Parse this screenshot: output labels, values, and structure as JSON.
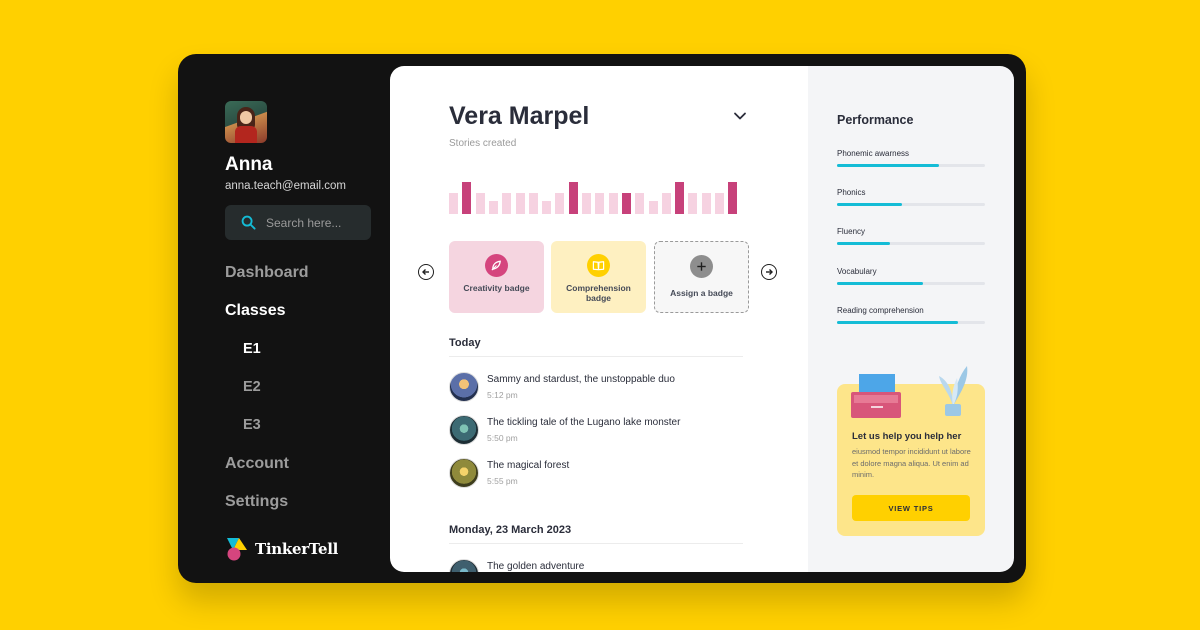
{
  "sidebar": {
    "user": {
      "name": "Anna",
      "email": "anna.teach@email.com"
    },
    "search": {
      "placeholder": "Search here..."
    },
    "nav": {
      "dashboard": "Dashboard",
      "classes": "Classes",
      "e1": "E1",
      "e2": "E2",
      "e3": "E3",
      "account": "Account",
      "settings": "Settings"
    },
    "logo": "TinkerTell"
  },
  "main": {
    "student_name": "Vera Marpel",
    "stories_label": "Stories created",
    "stories_chart": {
      "type": "bar",
      "values": [
        2,
        4,
        2,
        1,
        2,
        2,
        2,
        1,
        2,
        4,
        2,
        2,
        2,
        2,
        2,
        1,
        2,
        4,
        2,
        2,
        2,
        4
      ],
      "highlighted": [
        1,
        9,
        13,
        17,
        21
      ],
      "colors": {
        "normal": "#F6D2E1",
        "highlight": "#C7417A"
      }
    },
    "badges": [
      {
        "label": "Creativity badge",
        "icon": "feather-icon",
        "bg": "#F5D5E0",
        "icon_bg": "#D5457E"
      },
      {
        "label": "Comprehension badge",
        "icon": "book-icon",
        "bg": "#FEF0C1",
        "icon_bg": "#FFD000"
      },
      {
        "label": "Assign a badge",
        "icon": "plus-icon",
        "bg": "#F7F7F7",
        "icon_bg": "#8E8E8E"
      }
    ],
    "sections": [
      {
        "title": "Today",
        "stories": [
          {
            "title": "Sammy and stardust, the unstoppable duo",
            "time": "5:12 pm"
          },
          {
            "title": "The tickling tale of the Lugano lake monster",
            "time": "5:50 pm"
          },
          {
            "title": "The magical forest",
            "time": "5:55 pm"
          }
        ]
      },
      {
        "title": "Monday, 23 March 2023",
        "stories": [
          {
            "title": "The golden adventure",
            "time": ""
          }
        ]
      }
    ]
  },
  "performance": {
    "title": "Performance",
    "metrics": [
      {
        "label": "Phonemic awarness",
        "value": 0.69
      },
      {
        "label": "Phonics",
        "value": 0.44
      },
      {
        "label": "Fluency",
        "value": 0.36
      },
      {
        "label": "Vocabulary",
        "value": 0.58
      },
      {
        "label": "Reading comprehension",
        "value": 0.82
      }
    ],
    "accent": "#14BCD6",
    "tips": {
      "title": "Let us help you help her",
      "text": "eiusmod tempor incididunt ut labore et dolore magna aliqua. Ut enim ad minim.",
      "button": "VIEW TIPS"
    }
  }
}
